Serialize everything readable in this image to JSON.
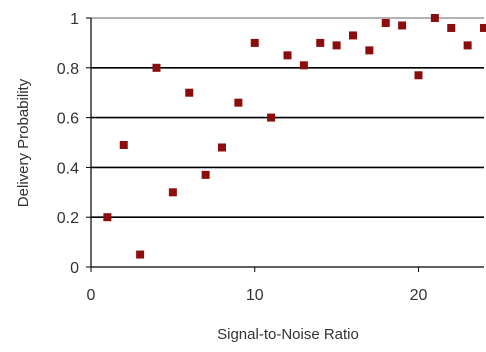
{
  "chart_data": {
    "type": "scatter",
    "title": "",
    "xlabel": "Signal-to-Noise Ratio",
    "ylabel": "Delivery Probability",
    "xlim": [
      0,
      24
    ],
    "ylim": [
      0,
      1
    ],
    "x_ticks": [
      0,
      10,
      20
    ],
    "y_ticks": [
      0,
      0.2,
      0.4,
      0.6,
      0.8,
      1
    ],
    "x_tick_labels": [
      "0",
      "10",
      "20"
    ],
    "y_tick_labels": [
      "0",
      "0.2",
      "0.4",
      "0.6",
      "0.8",
      "1"
    ],
    "grid": "horizontal",
    "legend": "none",
    "marker_color": "#8b0d0d",
    "series": [
      {
        "x": [
          1,
          2,
          3,
          4,
          5,
          6,
          7,
          8,
          9,
          10,
          11,
          12,
          13,
          14,
          15,
          16,
          17,
          18,
          19,
          20,
          21,
          22,
          23,
          24
        ],
        "y": [
          0.2,
          0.49,
          0.05,
          0.8,
          0.3,
          0.7,
          0.37,
          0.48,
          0.66,
          0.9,
          0.6,
          0.85,
          0.81,
          0.9,
          0.89,
          0.93,
          0.87,
          0.98,
          0.97,
          0.77,
          1.0,
          0.96,
          0.89,
          0.96
        ]
      }
    ]
  }
}
